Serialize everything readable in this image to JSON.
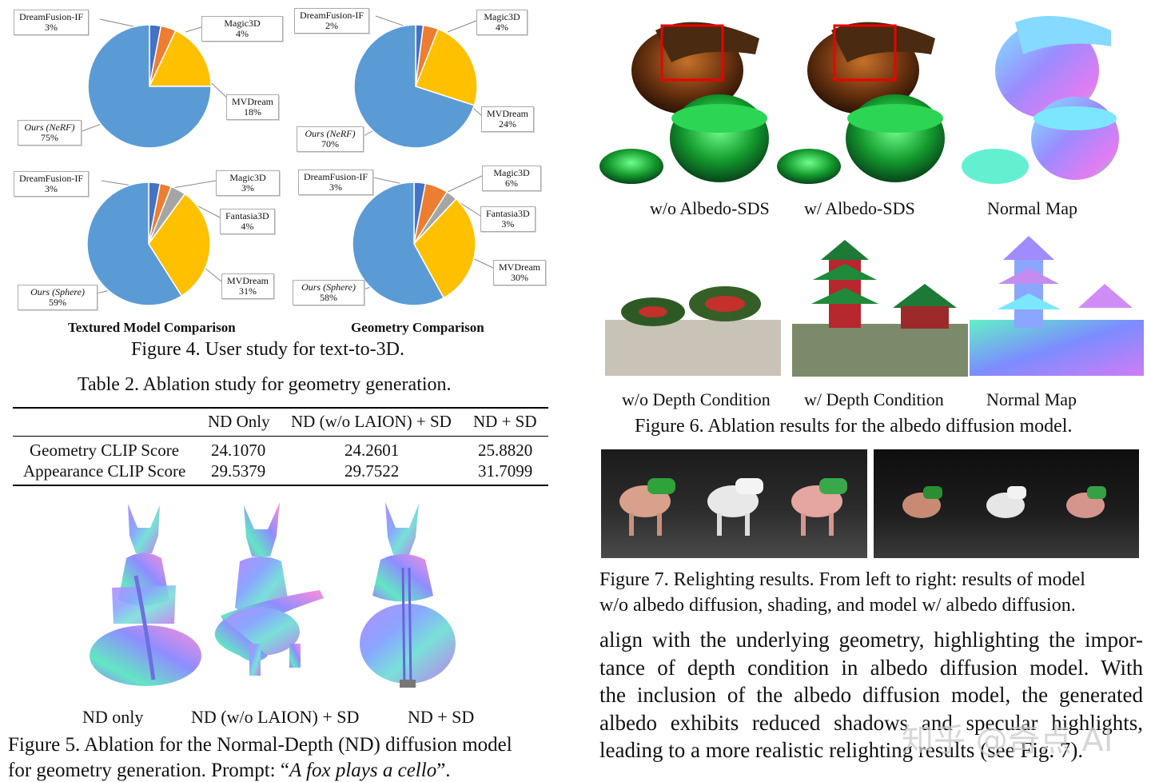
{
  "fig4": {
    "charts": [
      {
        "id": "textured-nerf",
        "labels": [
          {
            "name": "DreamFusion-IF",
            "pct": "3%"
          },
          {
            "name": "Magic3D",
            "pct": "4%"
          },
          {
            "name": "MVDream",
            "pct": "18%"
          },
          {
            "name": "Ours (NeRF)",
            "pct": "75%"
          }
        ]
      },
      {
        "id": "geometry-nerf",
        "labels": [
          {
            "name": "DreamFusion-IF",
            "pct": "2%"
          },
          {
            "name": "Magic3D",
            "pct": "4%"
          },
          {
            "name": "MVDream",
            "pct": "24%"
          },
          {
            "name": "Ours (NeRF)",
            "pct": "70%"
          }
        ]
      },
      {
        "id": "textured-sphere",
        "labels": [
          {
            "name": "DreamFusion-IF",
            "pct": "3%"
          },
          {
            "name": "Magic3D",
            "pct": "3%"
          },
          {
            "name": "Fantasia3D",
            "pct": "4%"
          },
          {
            "name": "MVDream",
            "pct": "31%"
          },
          {
            "name": "Ours (Sphere)",
            "pct": "59%"
          }
        ]
      },
      {
        "id": "geometry-sphere",
        "labels": [
          {
            "name": "DreamFusion-IF",
            "pct": "3%"
          },
          {
            "name": "Magic3D",
            "pct": "6%"
          },
          {
            "name": "Fantasia3D",
            "pct": "3%"
          },
          {
            "name": "MVDream",
            "pct": "30%"
          },
          {
            "name": "Ours (Sphere)",
            "pct": "58%"
          }
        ]
      }
    ],
    "subtitle_left": "Textured Model Comparison",
    "subtitle_right": "Geometry Comparison",
    "caption": "Figure 4. User study for text-to-3D."
  },
  "chart_data": [
    {
      "type": "pie",
      "categories": [
        "DreamFusion-IF",
        "Magic3D",
        "MVDream",
        "Ours (NeRF)"
      ],
      "values": [
        3,
        4,
        18,
        75
      ],
      "colors": [
        "#4472c4",
        "#ed7d31",
        "#ffc000",
        "#5b9bd5"
      ],
      "xlabel": "Textured Model Comparison"
    },
    {
      "type": "pie",
      "categories": [
        "DreamFusion-IF",
        "Magic3D",
        "MVDream",
        "Ours (NeRF)"
      ],
      "values": [
        2,
        4,
        24,
        70
      ],
      "colors": [
        "#4472c4",
        "#ed7d31",
        "#ffc000",
        "#5b9bd5"
      ],
      "xlabel": "Geometry Comparison"
    },
    {
      "type": "pie",
      "categories": [
        "DreamFusion-IF",
        "Magic3D",
        "Fantasia3D",
        "MVDream",
        "Ours (Sphere)"
      ],
      "values": [
        3,
        3,
        4,
        31,
        59
      ],
      "colors": [
        "#4472c4",
        "#ed7d31",
        "#a5a5a5",
        "#ffc000",
        "#5b9bd5"
      ],
      "xlabel": "Textured Model Comparison"
    },
    {
      "type": "pie",
      "categories": [
        "DreamFusion-IF",
        "Magic3D",
        "Fantasia3D",
        "MVDream",
        "Ours (Sphere)"
      ],
      "values": [
        3,
        6,
        3,
        30,
        58
      ],
      "colors": [
        "#4472c4",
        "#ed7d31",
        "#a5a5a5",
        "#ffc000",
        "#5b9bd5"
      ],
      "xlabel": "Geometry Comparison"
    }
  ],
  "table2": {
    "caption": "Table 2. Ablation study for geometry generation.",
    "headers": [
      "",
      "ND Only",
      "ND (w/o LAION) + SD",
      "ND + SD"
    ],
    "rows": [
      [
        "Geometry CLIP Score",
        "24.1070",
        "24.2601",
        "25.8820"
      ],
      [
        "Appearance CLIP Score",
        "29.5379",
        "29.7522",
        "31.7099"
      ]
    ]
  },
  "fig5": {
    "labels": [
      "ND only",
      "ND (w/o LAION) + SD",
      "ND + SD"
    ],
    "caption_line1": "Figure 5.  Ablation for the Normal-Depth (ND) diffusion model",
    "caption_line2_prefix": "for geometry generation. Prompt: “",
    "caption_line2_prompt": "A fox plays a cello",
    "caption_line2_suffix": "”."
  },
  "fig6": {
    "labels_top": [
      "w/o Albedo-SDS",
      "w/ Albedo-SDS",
      "Normal Map"
    ],
    "labels_bottom": [
      "w/o Depth Condition",
      "w/ Depth Condition",
      "Normal Map"
    ],
    "caption": "Figure 6. Ablation results for the albedo diffusion model."
  },
  "fig7": {
    "caption_line1": "Figure 7.  Relighting results.  From left to right:  results of model",
    "caption_line2": "w/o albedo diffusion, shading, and model w/ albedo diffusion."
  },
  "body_text": {
    "lines": [
      "align with the underlying geometry, highlighting the impor-",
      "tance of depth condition in albedo diffusion model.  With",
      "the inclusion of the albedo diffusion model, the generated",
      "albedo exhibits reduced shadows and specular highlights,",
      "leading to a more realistic relighting results (see Fig. 7)."
    ]
  },
  "watermark": "知乎 @奇点 AI"
}
